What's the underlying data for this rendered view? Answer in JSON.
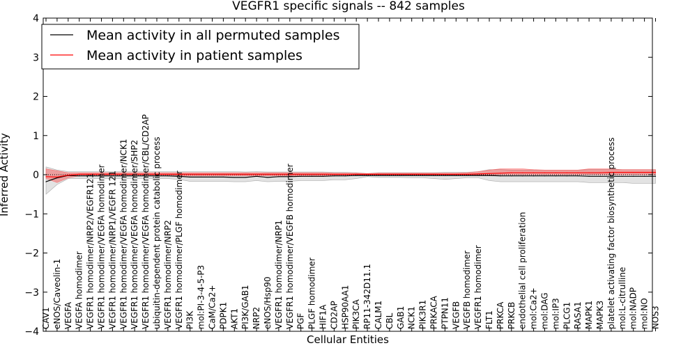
{
  "chart_data": {
    "type": "line",
    "title": "VEGFR1 specific signals -- 842 samples",
    "xlabel": "Cellular Entities",
    "ylabel": "Inferred Activity",
    "ylim": [
      -4,
      4
    ],
    "yticks": [
      "−4",
      "−3",
      "−2",
      "−1",
      "0",
      "1",
      "2",
      "3",
      "4"
    ],
    "grid": false,
    "legend_position": "top-left",
    "categories": [
      "CAV1",
      "eNOS/Caveolin-1",
      "VEGFA",
      "VEGFA homodimer",
      "VEGFR1 homodimer/NRP2/VEGFR121",
      "VEGFR1 homodimer/VEGFA homodimer",
      "VEGFR1 homodimer/NRP1/VEGFR 121",
      "VEGFR1 homodimer/VEGFA homodimer/NCK1",
      "VEGFR1 homodimer/VEGFA homodimer/SHP2",
      "VEGFR1 homodimer/VEGFA homodimer/CBL/CD2AP",
      "ubiquitin-dependent protein catabolic process",
      "VEGFR1 homodimer/NRP2",
      "VEGFR1 homodimer/PLGF homodimer",
      "PI3K",
      "mol:PI-3-4-5-P3",
      "CaM/Ca2+",
      "PDPK1",
      "AKT1",
      "PI3K/GAB1",
      "NRP2",
      "eNOS/Hsp90",
      "VEGFR1 homodimer/NRP1",
      "VEGFR1 homodimer/VEGFB homodimer",
      "PGF",
      "PLGF homodimer",
      "HIF1A",
      "CD2AP",
      "HSP90AA1",
      "PIK3CA",
      "RP11-342D11.1",
      "CALM1",
      "CBL",
      "GAB1",
      "NCK1",
      "PIK3R1",
      "PRKACA",
      "PTPN11",
      "VEGFB",
      "VEGFB homodimer",
      "VEGFR1 homodimer",
      "FLT1",
      "PRKCA",
      "PRKCB",
      "endothelial cell proliferation",
      "mol:Ca2+",
      "mol:DAG",
      "mol:IP3",
      "PLCG1",
      "RASA1",
      "MAPK1",
      "MAPK3",
      "platelet activating factor biosynthetic process",
      "mol:L-citrulline",
      "mol:NADP",
      "mol:NO",
      "NOS3"
    ],
    "series": [
      {
        "name": "Mean activity in all permuted samples",
        "color": "#000000",
        "values": [
          -0.18,
          -0.08,
          -0.02,
          -0.03,
          -0.03,
          -0.03,
          -0.03,
          -0.03,
          -0.03,
          -0.03,
          -0.03,
          -0.03,
          -0.04,
          -0.06,
          -0.06,
          -0.06,
          -0.06,
          -0.07,
          -0.07,
          -0.04,
          -0.07,
          -0.05,
          -0.05,
          -0.04,
          -0.04,
          -0.04,
          -0.03,
          -0.03,
          -0.02,
          -0.02,
          -0.02,
          -0.02,
          -0.02,
          -0.02,
          -0.02,
          -0.02,
          -0.02,
          -0.02,
          -0.02,
          -0.02,
          -0.02,
          -0.03,
          -0.03,
          -0.03,
          -0.03,
          -0.03,
          -0.03,
          -0.03,
          -0.03,
          -0.04,
          -0.04,
          -0.04,
          -0.04,
          -0.04,
          -0.04,
          -0.04
        ],
        "band_low": [
          -0.5,
          -0.25,
          -0.1,
          -0.1,
          -0.1,
          -0.1,
          -0.1,
          -0.1,
          -0.1,
          -0.1,
          -0.1,
          -0.1,
          -0.12,
          -0.17,
          -0.17,
          -0.17,
          -0.17,
          -0.18,
          -0.18,
          -0.15,
          -0.18,
          -0.17,
          -0.17,
          -0.15,
          -0.15,
          -0.15,
          -0.13,
          -0.13,
          -0.1,
          -0.05,
          -0.07,
          -0.07,
          -0.07,
          -0.08,
          -0.08,
          -0.1,
          -0.12,
          -0.1,
          -0.08,
          -0.08,
          -0.15,
          -0.18,
          -0.18,
          -0.18,
          -0.18,
          -0.18,
          -0.18,
          -0.18,
          -0.18,
          -0.2,
          -0.2,
          -0.2,
          -0.2,
          -0.22,
          -0.22,
          -0.22
        ],
        "band_high": [
          0.2,
          0.12,
          0.08,
          0.08,
          0.08,
          0.08,
          0.08,
          0.08,
          0.08,
          0.08,
          0.08,
          0.08,
          0.08,
          0.08,
          0.08,
          0.08,
          0.08,
          0.08,
          0.07,
          0.08,
          0.07,
          0.07,
          0.07,
          0.07,
          0.07,
          0.07,
          0.06,
          0.06,
          0.05,
          0.03,
          0.05,
          0.05,
          0.05,
          0.05,
          0.05,
          0.05,
          0.06,
          0.06,
          0.06,
          0.08,
          0.13,
          0.13,
          0.12,
          0.12,
          0.12,
          0.12,
          0.12,
          0.12,
          0.12,
          0.13,
          0.13,
          0.13,
          0.13,
          0.13,
          0.13,
          0.13
        ]
      },
      {
        "name": "Mean activity in patient samples",
        "color": "#ff0000",
        "values": [
          -0.05,
          -0.06,
          -0.01,
          0.01,
          0.01,
          0.01,
          0.01,
          0.01,
          0.01,
          0.01,
          0.01,
          0.01,
          0.01,
          0.01,
          0.01,
          0.01,
          0.01,
          0.01,
          0.01,
          0.01,
          0.01,
          0.01,
          0.01,
          0.01,
          0.01,
          0.01,
          0.01,
          0.01,
          0.01,
          0.01,
          0.01,
          0.01,
          0.01,
          0.01,
          0.01,
          0.01,
          0.01,
          0.01,
          0.01,
          0.02,
          0.03,
          0.04,
          0.05,
          0.05,
          0.05,
          0.05,
          0.05,
          0.05,
          0.05,
          0.05,
          0.05,
          0.06,
          0.06,
          0.06,
          0.06,
          0.06
        ],
        "band_low": [
          -0.1,
          -0.2,
          -0.08,
          -0.03,
          -0.03,
          -0.03,
          -0.03,
          -0.03,
          -0.03,
          -0.03,
          -0.03,
          -0.03,
          -0.03,
          -0.03,
          -0.03,
          -0.03,
          -0.03,
          -0.03,
          -0.03,
          -0.03,
          -0.03,
          -0.03,
          -0.03,
          -0.03,
          -0.03,
          -0.03,
          -0.02,
          -0.02,
          -0.02,
          -0.01,
          -0.02,
          -0.02,
          -0.02,
          -0.02,
          -0.02,
          -0.02,
          -0.02,
          -0.02,
          -0.02,
          -0.01,
          -0.01,
          0.0,
          0.0,
          0.0,
          0.0,
          0.0,
          0.0,
          0.0,
          0.0,
          0.0,
          0.0,
          0.0,
          0.0,
          0.0,
          0.0,
          0.0
        ],
        "band_high": [
          0.15,
          0.1,
          0.05,
          0.05,
          0.05,
          0.05,
          0.05,
          0.05,
          0.05,
          0.05,
          0.05,
          0.05,
          0.05,
          0.05,
          0.05,
          0.05,
          0.05,
          0.05,
          0.05,
          0.05,
          0.05,
          0.05,
          0.05,
          0.05,
          0.05,
          0.05,
          0.04,
          0.04,
          0.04,
          0.03,
          0.04,
          0.04,
          0.04,
          0.04,
          0.04,
          0.04,
          0.04,
          0.04,
          0.05,
          0.08,
          0.12,
          0.15,
          0.15,
          0.15,
          0.13,
          0.12,
          0.12,
          0.12,
          0.12,
          0.15,
          0.15,
          0.15,
          0.13,
          0.13,
          0.13,
          0.13
        ]
      }
    ]
  }
}
